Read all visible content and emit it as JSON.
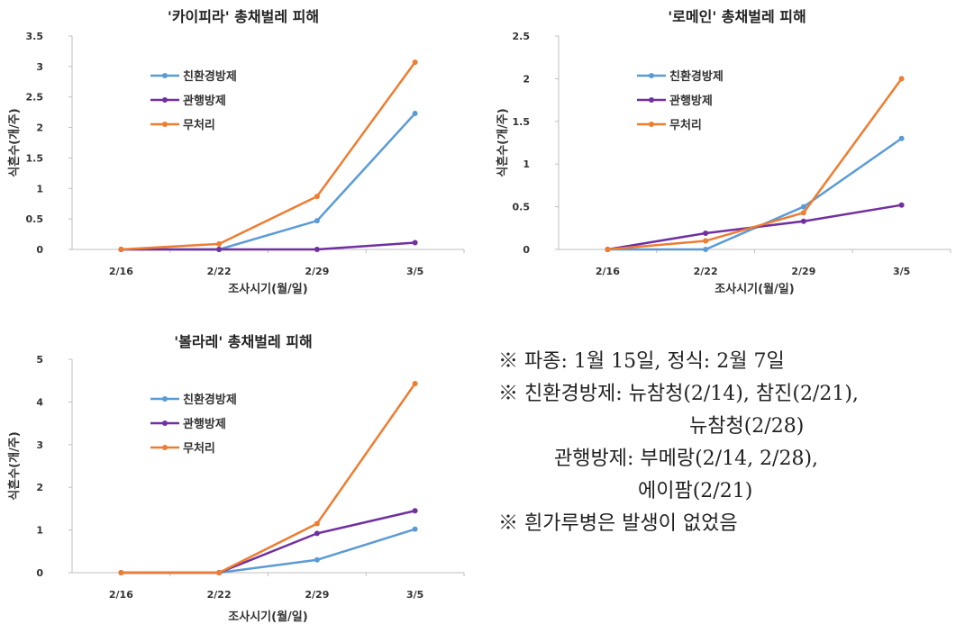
{
  "chart_data": [
    {
      "type": "line",
      "title": "'카이피라' 총채벌레 피해",
      "xlabel": "조사시기(월/일)",
      "ylabel": "식흔수(개/주)",
      "categories": [
        "2/16",
        "2/22",
        "2/29",
        "3/5"
      ],
      "ylim": [
        0,
        3.5
      ],
      "yticks": [
        "0",
        "0.5",
        "1",
        "1.5",
        "2",
        "2.5",
        "3",
        "3.5"
      ],
      "legend_position": "top-left",
      "series": [
        {
          "name": "친환경방제",
          "color": "#5b9bd5",
          "values": [
            0,
            0,
            0.47,
            2.23
          ]
        },
        {
          "name": "관행방제",
          "color": "#7030a0",
          "values": [
            0,
            0,
            0,
            0.11
          ]
        },
        {
          "name": "무처리",
          "color": "#ed7d31",
          "values": [
            0,
            0.09,
            0.87,
            3.07
          ]
        }
      ]
    },
    {
      "type": "line",
      "title": "'로메인' 총채벌레 피해",
      "xlabel": "조사시기(월/일)",
      "ylabel": "식흔수(개/주)",
      "categories": [
        "2/16",
        "2/22",
        "2/29",
        "3/5"
      ],
      "ylim": [
        0,
        2.5
      ],
      "yticks": [
        "0",
        "0.5",
        "1",
        "1.5",
        "2",
        "2.5"
      ],
      "legend_position": "top-left",
      "series": [
        {
          "name": "친환경방제",
          "color": "#5b9bd5",
          "values": [
            0,
            0,
            0.5,
            1.3
          ]
        },
        {
          "name": "관행방제",
          "color": "#7030a0",
          "values": [
            0,
            0.19,
            0.33,
            0.52
          ]
        },
        {
          "name": "무처리",
          "color": "#ed7d31",
          "values": [
            0,
            0.1,
            0.43,
            2.0
          ]
        }
      ]
    },
    {
      "type": "line",
      "title": "'볼라레' 총채벌레 피해",
      "xlabel": "조사시기(월/일)",
      "ylabel": "식흔수(개/주)",
      "categories": [
        "2/16",
        "2/22",
        "2/29",
        "3/5"
      ],
      "ylim": [
        0,
        5
      ],
      "yticks": [
        "0",
        "1",
        "2",
        "3",
        "4",
        "5"
      ],
      "legend_position": "top-left",
      "series": [
        {
          "name": "친환경방제",
          "color": "#5b9bd5",
          "values": [
            0,
            0,
            0.3,
            1.02
          ]
        },
        {
          "name": "관행방제",
          "color": "#7030a0",
          "values": [
            0,
            0,
            0.92,
            1.45
          ]
        },
        {
          "name": "무처리",
          "color": "#ed7d31",
          "values": [
            0,
            0,
            1.15,
            4.43
          ]
        }
      ]
    }
  ],
  "notes": {
    "line1": "※ 파종: 1월 15일, 정식: 2월 7일",
    "line2": "※ 친환경방제: 뉴참청(2/14), 참진(2/21),",
    "line3": "뉴참청(2/28)",
    "line4": "관행방제: 부메랑(2/14, 2/28),",
    "line5": "에이팜(2/21)",
    "line6": "※ 흰가루병은 발생이 없었음"
  }
}
